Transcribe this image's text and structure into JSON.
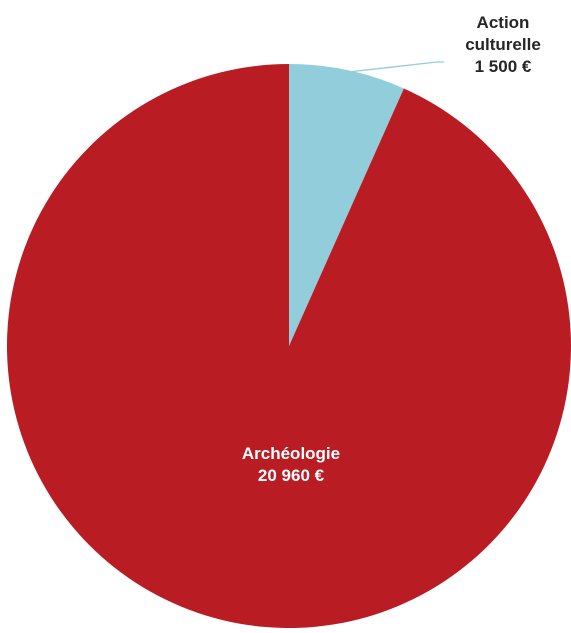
{
  "chart_data": {
    "type": "pie",
    "start_angle_deg": 0,
    "direction": "clockwise",
    "slices": [
      {
        "label": "Action culturelle",
        "label_lines": [
          "Action",
          "culturelle"
        ],
        "value": 1500,
        "value_label": "1 500 €",
        "color": "#92CDDC",
        "label_placement": "outside-leader",
        "label_color": "#262626",
        "leader_color": "#92CDDC"
      },
      {
        "label": "Archéologie",
        "label_lines": [
          "Archéologie"
        ],
        "value": 20960,
        "value_label": "20 960 €",
        "color": "#BA1C24",
        "label_placement": "inside",
        "label_color": "#ffffff"
      }
    ],
    "title": "",
    "legend": "none"
  }
}
